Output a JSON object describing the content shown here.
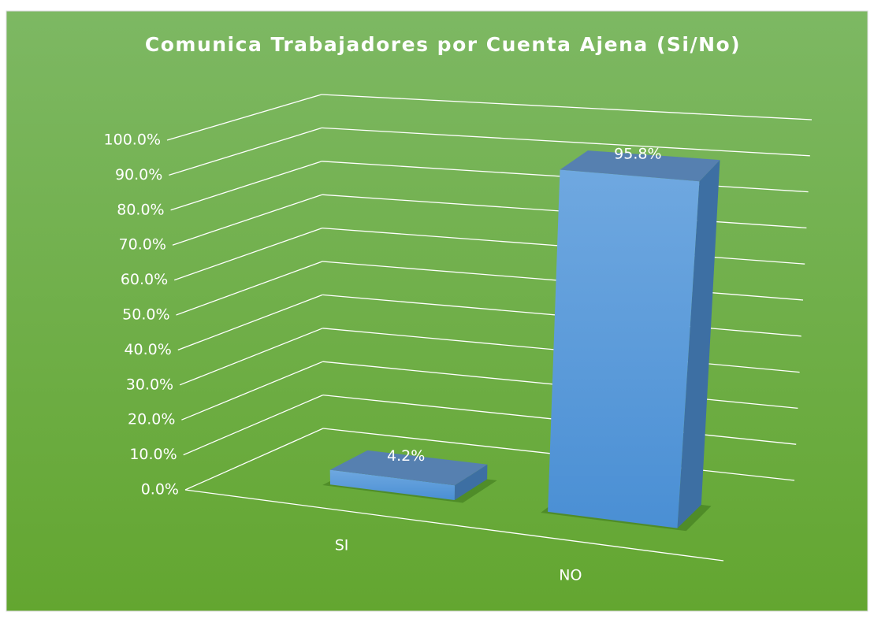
{
  "chart_data": {
    "type": "bar3d",
    "title": "Comunica Trabajadores por Cuenta Ajena (Si/No)",
    "categories": [
      "SI",
      "NO"
    ],
    "values": [
      4.2,
      95.8
    ],
    "value_labels": [
      "4.2%",
      "95.8%"
    ],
    "color": "#5b9bd5",
    "ylim": [
      0,
      100
    ],
    "yticks": [
      {
        "value": 0,
        "label": "0.0%"
      },
      {
        "value": 10,
        "label": "10.0%"
      },
      {
        "value": 20,
        "label": "20.0%"
      },
      {
        "value": 30,
        "label": "30.0%"
      },
      {
        "value": 40,
        "label": "40.0%"
      },
      {
        "value": 50,
        "label": "50.0%"
      },
      {
        "value": 60,
        "label": "60.0%"
      },
      {
        "value": 70,
        "label": "70.0%"
      },
      {
        "value": 80,
        "label": "80.0%"
      },
      {
        "value": 90,
        "label": "90.0%"
      },
      {
        "value": 100,
        "label": "100.0%"
      }
    ],
    "grid": true
  }
}
